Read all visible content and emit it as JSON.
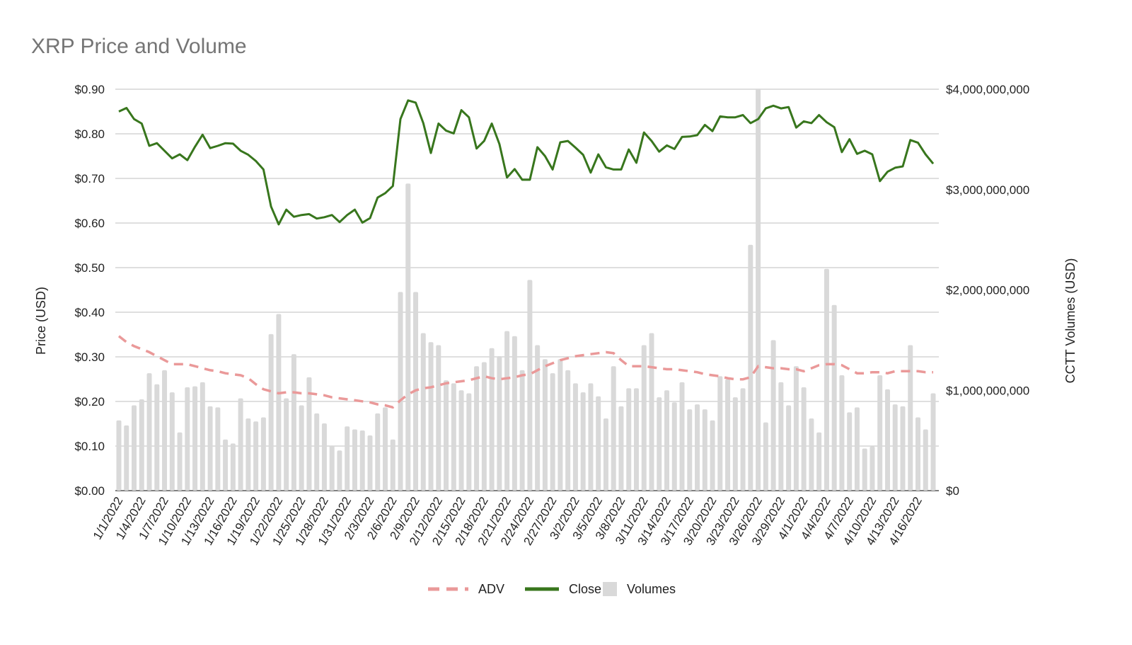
{
  "chart_data": {
    "type": "bar+line",
    "title": "XRP Price and Volume",
    "ylabel_left": "Price (USD)",
    "ylabel_right": "CCTT Volumes (USD)",
    "ylim_left": [
      0,
      0.9
    ],
    "ylim_right": [
      0,
      4000000000
    ],
    "yticks_left": [
      "$0.00",
      "$0.10",
      "$0.20",
      "$0.30",
      "$0.40",
      "$0.50",
      "$0.60",
      "$0.70",
      "$0.80",
      "$0.90"
    ],
    "yticks_right": [
      "$0",
      "$1,000,000,000",
      "$2,000,000,000",
      "$3,000,000,000",
      "$4,000,000,000"
    ],
    "grid": true,
    "legend_placement": "bottom",
    "categories": [
      "1/1/2022",
      "1/2/2022",
      "1/3/2022",
      "1/4/2022",
      "1/5/2022",
      "1/6/2022",
      "1/7/2022",
      "1/8/2022",
      "1/9/2022",
      "1/10/2022",
      "1/11/2022",
      "1/12/2022",
      "1/13/2022",
      "1/14/2022",
      "1/15/2022",
      "1/16/2022",
      "1/17/2022",
      "1/18/2022",
      "1/19/2022",
      "1/20/2022",
      "1/21/2022",
      "1/22/2022",
      "1/23/2022",
      "1/24/2022",
      "1/25/2022",
      "1/26/2022",
      "1/27/2022",
      "1/28/2022",
      "1/29/2022",
      "1/30/2022",
      "1/31/2022",
      "2/1/2022",
      "2/2/2022",
      "2/3/2022",
      "2/4/2022",
      "2/5/2022",
      "2/6/2022",
      "2/7/2022",
      "2/8/2022",
      "2/9/2022",
      "2/10/2022",
      "2/11/2022",
      "2/12/2022",
      "2/13/2022",
      "2/14/2022",
      "2/15/2022",
      "2/16/2022",
      "2/17/2022",
      "2/18/2022",
      "2/19/2022",
      "2/20/2022",
      "2/21/2022",
      "2/22/2022",
      "2/23/2022",
      "2/24/2022",
      "2/25/2022",
      "2/26/2022",
      "2/27/2022",
      "2/28/2022",
      "3/1/2022",
      "3/2/2022",
      "3/3/2022",
      "3/4/2022",
      "3/5/2022",
      "3/6/2022",
      "3/7/2022",
      "3/8/2022",
      "3/9/2022",
      "3/10/2022",
      "3/11/2022",
      "3/12/2022",
      "3/13/2022",
      "3/14/2022",
      "3/15/2022",
      "3/16/2022",
      "3/17/2022",
      "3/18/2022",
      "3/19/2022",
      "3/20/2022",
      "3/21/2022",
      "3/22/2022",
      "3/23/2022",
      "3/24/2022",
      "3/25/2022",
      "3/26/2022",
      "3/27/2022",
      "3/28/2022",
      "3/29/2022",
      "3/30/2022",
      "3/31/2022",
      "4/1/2022",
      "4/2/2022",
      "4/3/2022",
      "4/4/2022",
      "4/5/2022",
      "4/6/2022",
      "4/7/2022",
      "4/8/2022",
      "4/9/2022",
      "4/10/2022",
      "4/11/2022",
      "4/12/2022",
      "4/13/2022",
      "4/14/2022",
      "4/15/2022",
      "4/16/2022",
      "4/17/2022",
      "4/18/2022"
    ],
    "xtick_labels": [
      "1/1/2022",
      "1/4/2022",
      "1/7/2022",
      "1/10/2022",
      "1/13/2022",
      "1/16/2022",
      "1/19/2022",
      "1/22/2022",
      "1/25/2022",
      "1/28/2022",
      "1/31/2022",
      "2/3/2022",
      "2/6/2022",
      "2/9/2022",
      "2/12/2022",
      "2/15/2022",
      "2/18/2022",
      "2/21/2022",
      "2/24/2022",
      "2/27/2022",
      "3/2/2022",
      "3/5/2022",
      "3/8/2022",
      "3/11/2022",
      "3/14/2022",
      "3/17/2022",
      "3/20/2022",
      "3/23/2022",
      "3/26/2022",
      "3/29/2022",
      "4/1/2022",
      "4/4/2022",
      "4/7/2022",
      "4/10/2022",
      "4/13/2022",
      "4/16/2022"
    ],
    "series": [
      {
        "name": "ADV",
        "type": "line",
        "style": "dashed",
        "axis": "right",
        "color": "#ea9999",
        "values": [
          1540000000,
          1480000000,
          1440000000,
          1410000000,
          1380000000,
          1340000000,
          1300000000,
          1260000000,
          1260000000,
          1260000000,
          1240000000,
          1220000000,
          1200000000,
          1190000000,
          1170000000,
          1160000000,
          1150000000,
          1120000000,
          1060000000,
          1010000000,
          990000000,
          970000000,
          980000000,
          980000000,
          970000000,
          970000000,
          960000000,
          950000000,
          930000000,
          920000000,
          910000000,
          900000000,
          890000000,
          880000000,
          860000000,
          850000000,
          830000000,
          900000000,
          960000000,
          1000000000,
          1020000000,
          1030000000,
          1050000000,
          1070000000,
          1080000000,
          1090000000,
          1100000000,
          1120000000,
          1140000000,
          1120000000,
          1110000000,
          1120000000,
          1130000000,
          1150000000,
          1160000000,
          1200000000,
          1240000000,
          1270000000,
          1300000000,
          1320000000,
          1340000000,
          1350000000,
          1360000000,
          1370000000,
          1380000000,
          1370000000,
          1300000000,
          1240000000,
          1240000000,
          1240000000,
          1230000000,
          1220000000,
          1210000000,
          1210000000,
          1200000000,
          1190000000,
          1180000000,
          1160000000,
          1150000000,
          1140000000,
          1120000000,
          1110000000,
          1110000000,
          1130000000,
          1240000000,
          1230000000,
          1220000000,
          1220000000,
          1210000000,
          1210000000,
          1190000000,
          1220000000,
          1250000000,
          1260000000,
          1260000000,
          1250000000,
          1210000000,
          1170000000,
          1170000000,
          1180000000,
          1180000000,
          1170000000,
          1190000000,
          1190000000,
          1190000000,
          1190000000,
          1180000000,
          1180000000
        ]
      },
      {
        "name": "Close",
        "type": "line",
        "style": "solid",
        "axis": "left",
        "color": "#38761d",
        "values": [
          0.85,
          0.858,
          0.833,
          0.823,
          0.773,
          0.779,
          0.762,
          0.745,
          0.754,
          0.741,
          0.771,
          0.798,
          0.768,
          0.773,
          0.779,
          0.778,
          0.762,
          0.753,
          0.739,
          0.72,
          0.637,
          0.597,
          0.63,
          0.614,
          0.618,
          0.62,
          0.61,
          0.613,
          0.618,
          0.602,
          0.618,
          0.63,
          0.601,
          0.611,
          0.657,
          0.667,
          0.683,
          0.833,
          0.875,
          0.87,
          0.824,
          0.757,
          0.823,
          0.807,
          0.801,
          0.853,
          0.837,
          0.767,
          0.784,
          0.823,
          0.777,
          0.702,
          0.721,
          0.697,
          0.697,
          0.77,
          0.75,
          0.72,
          0.781,
          0.784,
          0.769,
          0.753,
          0.713,
          0.754,
          0.725,
          0.72,
          0.72,
          0.765,
          0.735,
          0.803,
          0.784,
          0.76,
          0.774,
          0.766,
          0.793,
          0.794,
          0.797,
          0.82,
          0.806,
          0.839,
          0.837,
          0.837,
          0.842,
          0.824,
          0.833,
          0.857,
          0.863,
          0.857,
          0.86,
          0.814,
          0.828,
          0.824,
          0.842,
          0.826,
          0.815,
          0.759,
          0.788,
          0.755,
          0.762,
          0.754,
          0.694,
          0.715,
          0.724,
          0.727,
          0.786,
          0.78,
          0.754,
          0.733
        ]
      },
      {
        "name": "Volumes",
        "type": "bar",
        "axis": "right",
        "color": "#d9d9d9",
        "values": [
          700000000,
          650000000,
          850000000,
          910000000,
          1170000000,
          1060000000,
          1200000000,
          980000000,
          580000000,
          1030000000,
          1040000000,
          1080000000,
          840000000,
          830000000,
          510000000,
          470000000,
          920000000,
          720000000,
          690000000,
          730000000,
          1560000000,
          1760000000,
          920000000,
          1360000000,
          850000000,
          1130000000,
          770000000,
          670000000,
          450000000,
          400000000,
          640000000,
          610000000,
          600000000,
          550000000,
          770000000,
          830000000,
          510000000,
          1980000000,
          3060000000,
          1980000000,
          1570000000,
          1480000000,
          1450000000,
          1100000000,
          1070000000,
          1000000000,
          970000000,
          1240000000,
          1280000000,
          1420000000,
          1340000000,
          1590000000,
          1540000000,
          1200000000,
          2100000000,
          1450000000,
          1310000000,
          1170000000,
          1310000000,
          1200000000,
          1070000000,
          980000000,
          1070000000,
          940000000,
          720000000,
          1240000000,
          840000000,
          1020000000,
          1020000000,
          1450000000,
          1570000000,
          930000000,
          1000000000,
          880000000,
          1080000000,
          810000000,
          860000000,
          810000000,
          700000000,
          1140000000,
          1110000000,
          930000000,
          1020000000,
          2450000000,
          4000000000,
          680000000,
          1500000000,
          1080000000,
          850000000,
          1240000000,
          1030000000,
          720000000,
          580000000,
          2210000000,
          1850000000,
          1150000000,
          780000000,
          830000000,
          420000000,
          440000000,
          1150000000,
          1010000000,
          860000000,
          840000000,
          1450000000,
          730000000,
          610000000,
          970000000
        ]
      }
    ]
  }
}
